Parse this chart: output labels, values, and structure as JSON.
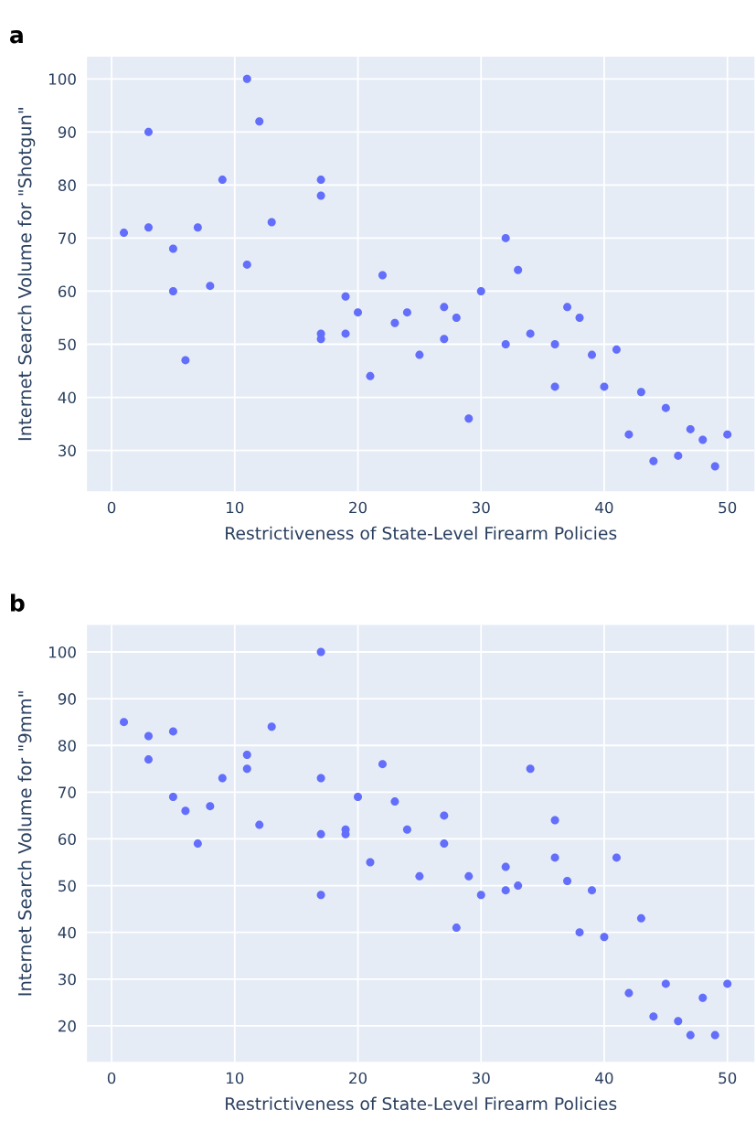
{
  "chart_data": [
    {
      "type": "scatter",
      "title": "a",
      "xlabel": "Restrictiveness of State-Level Firearm Policies",
      "ylabel": "Internet Search Volume for \"Shotgun\"",
      "marker": "circle",
      "grid": true,
      "legend": false,
      "xlim": [
        -2,
        52.2
      ],
      "ylim": [
        22.3,
        104.2
      ],
      "xticks": [
        0,
        10,
        20,
        30,
        40,
        50
      ],
      "yticks": [
        30,
        40,
        50,
        60,
        70,
        80,
        90,
        100
      ],
      "series": [
        {
          "color": "#636efa",
          "x": [
            1,
            3,
            3,
            5,
            5,
            6,
            7,
            8,
            9,
            11,
            11,
            12,
            13,
            17,
            17,
            17,
            17,
            19,
            19,
            20,
            21,
            22,
            23,
            24,
            25,
            27,
            27,
            28,
            29,
            30,
            32,
            32,
            33,
            34,
            36,
            36,
            37,
            38,
            39,
            40,
            41,
            42,
            43,
            44,
            45,
            46,
            47,
            48,
            49,
            50
          ],
          "values": [
            71,
            90,
            72,
            68,
            60,
            47,
            72,
            61,
            81,
            100,
            65,
            92,
            73,
            81,
            78,
            52,
            51,
            59,
            52,
            56,
            44,
            63,
            54,
            56,
            48,
            57,
            51,
            55,
            36,
            60,
            70,
            50,
            64,
            52,
            50,
            42,
            57,
            55,
            48,
            42,
            49,
            33,
            41,
            28,
            38,
            29,
            34,
            32,
            27,
            33
          ]
        }
      ]
    },
    {
      "type": "scatter",
      "title": "b",
      "xlabel": "Restrictiveness of State-Level Firearm Policies",
      "ylabel": "Internet Search Volume for \"9mm\"",
      "marker": "circle",
      "grid": true,
      "legend": false,
      "xlim": [
        -2,
        52.2
      ],
      "ylim": [
        12.3,
        105.8
      ],
      "xticks": [
        0,
        10,
        20,
        30,
        40,
        50
      ],
      "yticks": [
        20,
        30,
        40,
        50,
        60,
        70,
        80,
        90,
        100
      ],
      "series": [
        {
          "color": "#636efa",
          "x": [
            1,
            3,
            3,
            5,
            5,
            6,
            7,
            8,
            9,
            11,
            11,
            12,
            13,
            17,
            17,
            17,
            17,
            19,
            19,
            20,
            21,
            22,
            23,
            24,
            25,
            27,
            27,
            28,
            29,
            30,
            32,
            32,
            33,
            34,
            36,
            36,
            37,
            38,
            39,
            40,
            41,
            42,
            43,
            44,
            45,
            46,
            47,
            48,
            49,
            50
          ],
          "values": [
            85,
            82,
            77,
            83,
            69,
            66,
            59,
            67,
            73,
            78,
            75,
            63,
            84,
            100,
            73,
            61,
            48,
            62,
            61,
            69,
            55,
            76,
            68,
            62,
            52,
            65,
            59,
            41,
            52,
            48,
            54,
            49,
            50,
            75,
            64,
            56,
            51,
            40,
            49,
            39,
            56,
            27,
            43,
            22,
            29,
            21,
            18,
            26,
            18,
            29
          ]
        }
      ]
    }
  ]
}
